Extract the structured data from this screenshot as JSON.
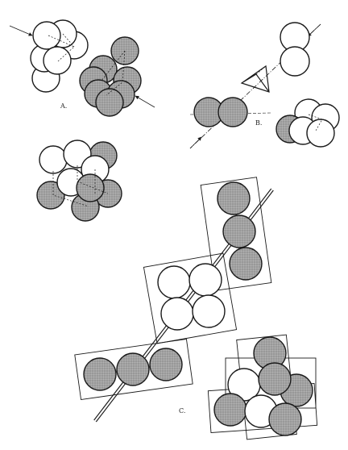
{
  "figure": {
    "labels": {
      "a": "A.",
      "b": "B.",
      "c": "C."
    },
    "colors": {
      "ink": "#1a1a1a",
      "shaded_fill": "#9a9a9a",
      "white_fill": "#ffffff",
      "background": "#ffffff"
    }
  }
}
